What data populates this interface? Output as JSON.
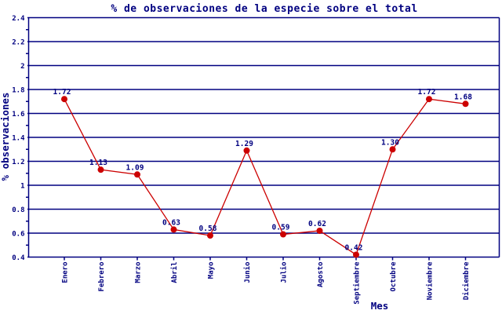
{
  "chart_data": {
    "type": "line",
    "title": "% de observaciones de la especie sobre el total",
    "xlabel": "Mes",
    "ylabel": "% observaciones",
    "categories": [
      "Enero",
      "Febrero",
      "Marzo",
      "Abril",
      "Mayo",
      "Junio",
      "Julio",
      "Agosto",
      "Septiembre",
      "Octubre",
      "Noviembre",
      "Diciembre"
    ],
    "values": [
      1.72,
      1.13,
      1.09,
      0.63,
      0.58,
      1.29,
      0.59,
      0.62,
      0.42,
      1.3,
      1.72,
      1.68
    ],
    "point_labels": [
      "1.72",
      "1.13",
      "1.09",
      "0.63",
      "0.58",
      "1.29",
      "0.59",
      "0.62",
      "0.42",
      "1.30",
      "1.72",
      "1.68"
    ],
    "ylim": [
      0.4,
      2.4
    ],
    "ytick_step": 0.2,
    "ytick_labels": [
      "2.4",
      "2.2",
      "2",
      "1.8",
      "1.6",
      "1.4",
      "1.2",
      "1",
      "0.8",
      "0.6",
      "0.4"
    ],
    "grid": true,
    "legend": "none",
    "colors": {
      "line": "#CC0000",
      "marker": "#CC0000",
      "axis": "#000080",
      "text": "#000080",
      "background": "#FFFFFF"
    }
  }
}
